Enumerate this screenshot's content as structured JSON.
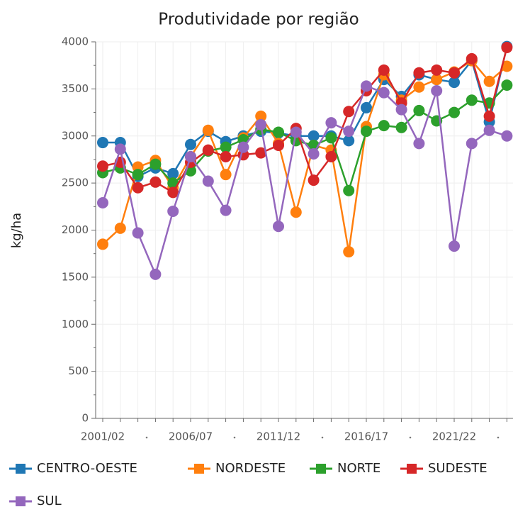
{
  "chart_data": {
    "type": "line",
    "title": "Produtividade por região",
    "y_label": "kg/ha",
    "categories": [
      "2001/02",
      null,
      null,
      null,
      null,
      "2006/07",
      null,
      null,
      null,
      null,
      "2011/12",
      null,
      null,
      null,
      null,
      "2016/17",
      null,
      null,
      null,
      null,
      "2021/22",
      null,
      null,
      null
    ],
    "ylim": [
      0,
      4000
    ],
    "yticks": [
      0,
      500,
      1000,
      1500,
      2000,
      2500,
      3000,
      3500,
      4000
    ],
    "grid": true,
    "series": [
      {
        "name": "CENTRO-OESTE",
        "color": "#1f77b4",
        "values": [
          2930,
          2930,
          2570,
          2660,
          2600,
          2910,
          3050,
          2940,
          3000,
          3050,
          3030,
          3000,
          3000,
          3000,
          2950,
          3300,
          3600,
          3420,
          3650,
          3600,
          3570,
          3800,
          3150,
          3950
        ]
      },
      {
        "name": "NORDESTE",
        "color": "#ff7f0e",
        "values": [
          1850,
          2020,
          2670,
          2740,
          2450,
          2780,
          3060,
          2590,
          2980,
          3210,
          2920,
          2190,
          2900,
          2850,
          1770,
          3100,
          3650,
          3380,
          3520,
          3600,
          3680,
          3800,
          3580,
          3740
        ]
      },
      {
        "name": "NORTE",
        "color": "#2ca02c",
        "values": [
          2610,
          2660,
          2590,
          2700,
          2500,
          2630,
          2840,
          2880,
          2960,
          3070,
          3040,
          2950,
          2900,
          2980,
          2420,
          3050,
          3110,
          3090,
          3270,
          3160,
          3250,
          3380,
          3350,
          3540
        ]
      },
      {
        "name": "SUDESTE",
        "color": "#d62728",
        "values": [
          2680,
          2720,
          2450,
          2510,
          2400,
          2720,
          2850,
          2780,
          2800,
          2820,
          2900,
          3080,
          2530,
          2780,
          3260,
          3480,
          3700,
          3350,
          3670,
          3700,
          3670,
          3820,
          3210,
          3940
        ]
      },
      {
        "name": "SUL",
        "color": "#9467bd",
        "values": [
          2290,
          2860,
          1970,
          1530,
          2200,
          2780,
          2520,
          2210,
          2880,
          3120,
          2040,
          3040,
          2810,
          3140,
          3050,
          3530,
          3460,
          3280,
          2920,
          3480,
          1830,
          2920,
          3060,
          3000
        ]
      }
    ]
  }
}
